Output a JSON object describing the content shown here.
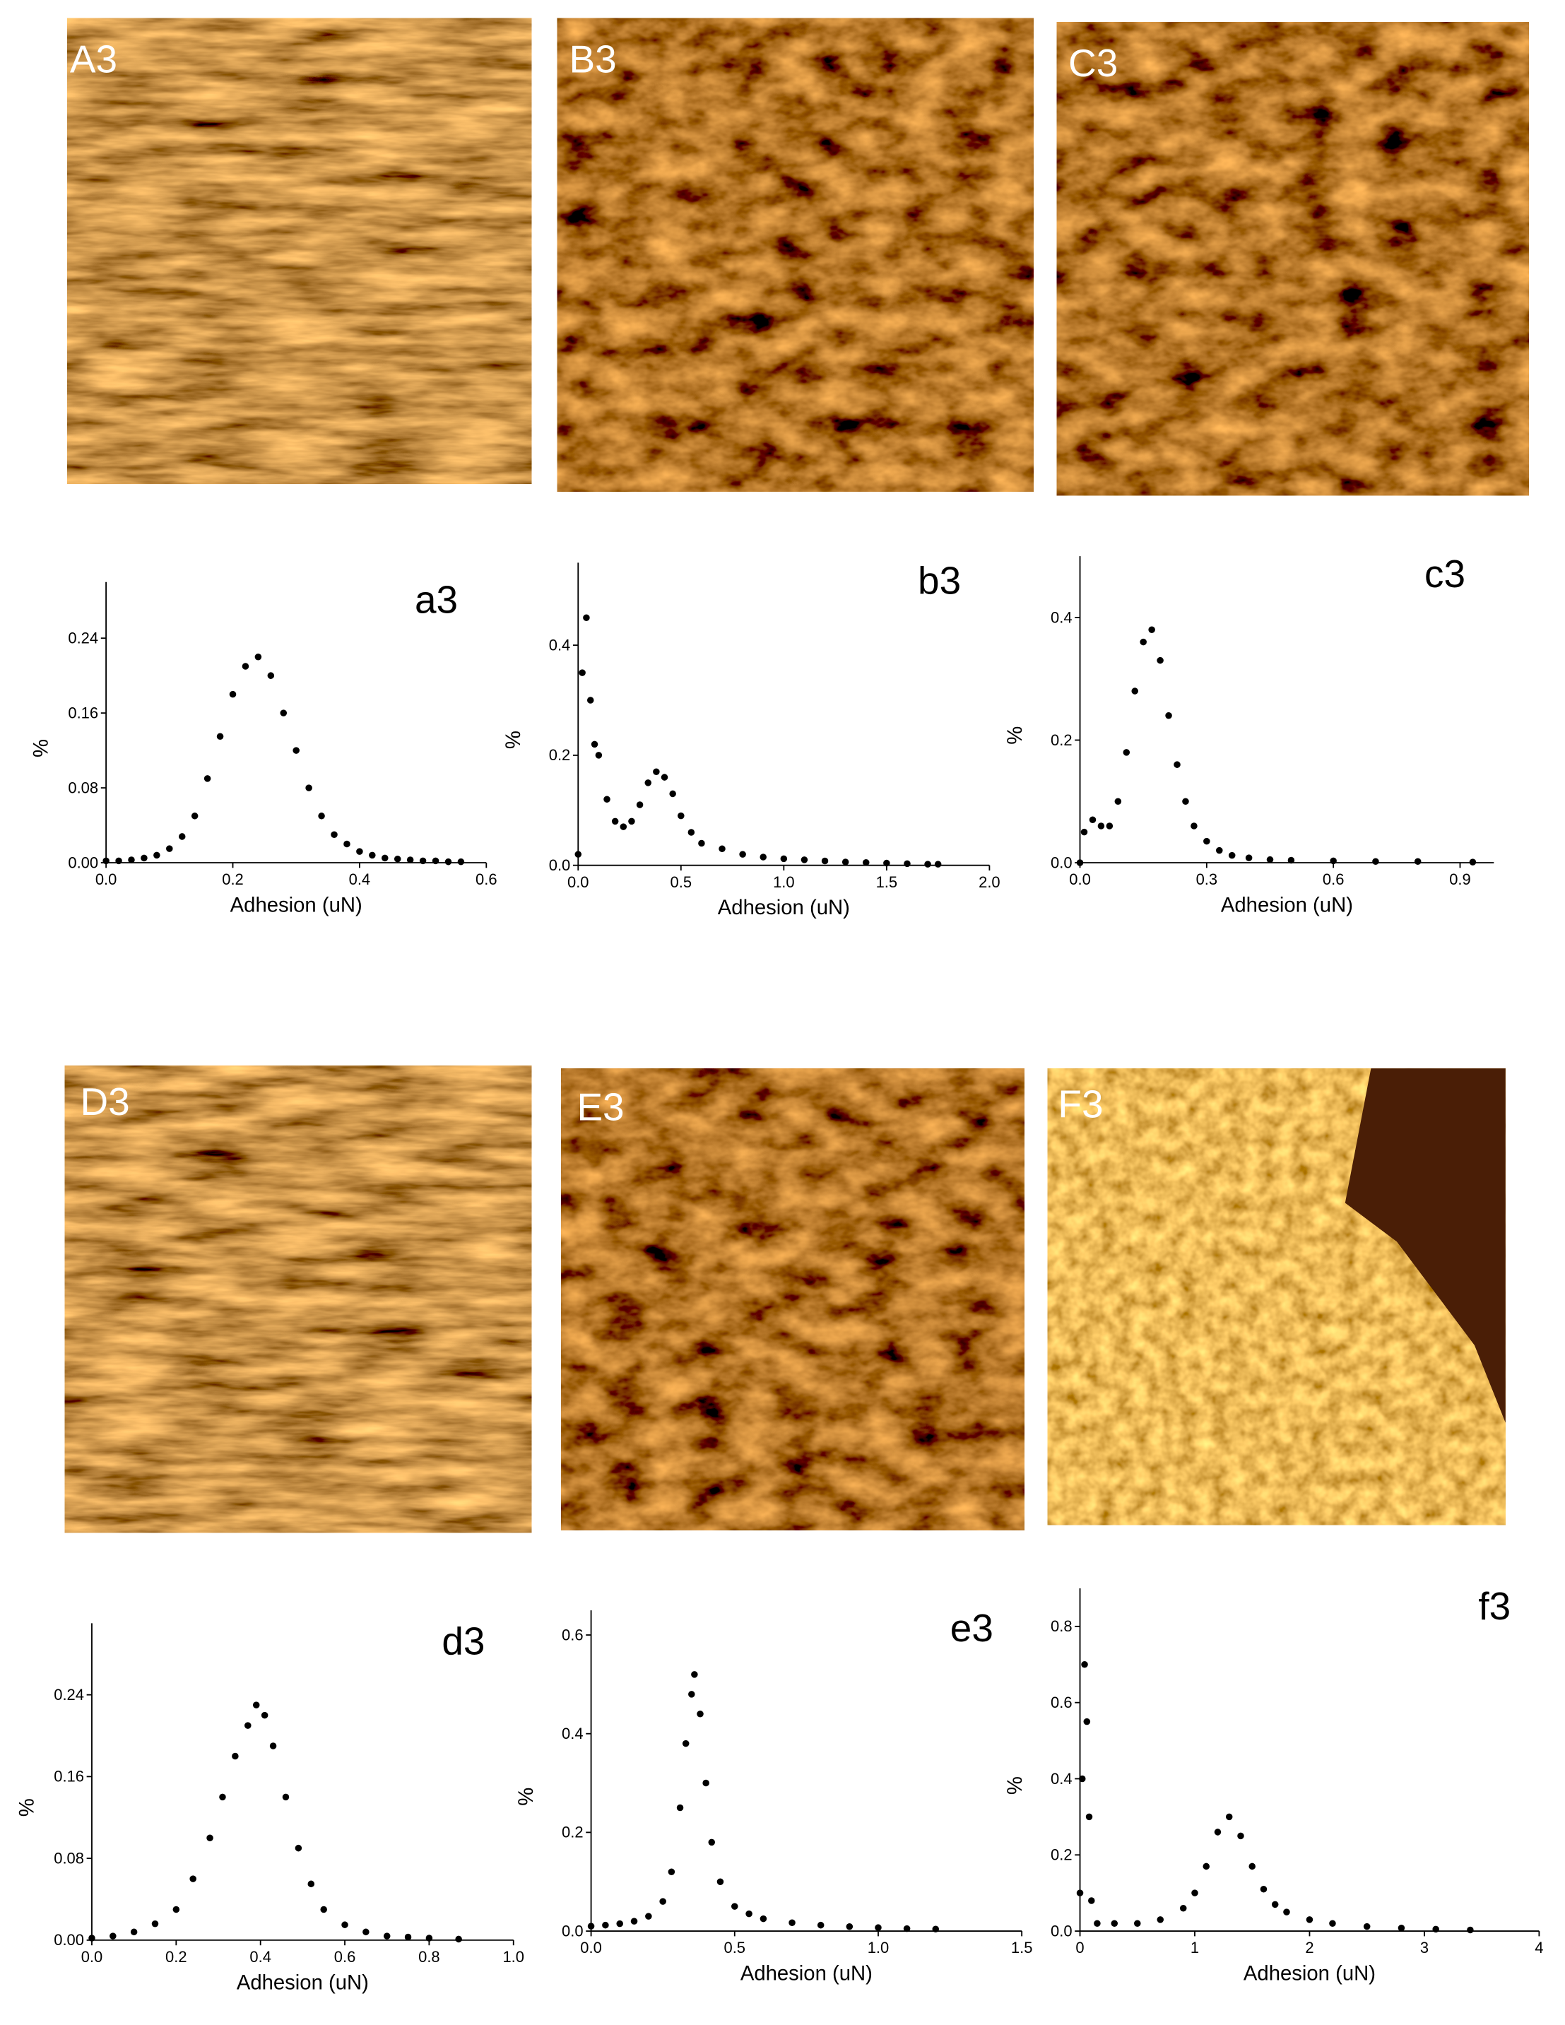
{
  "images": [
    {
      "label": "A3"
    },
    {
      "label": "B3"
    },
    {
      "label": "C3"
    },
    {
      "label": "D3"
    },
    {
      "label": "E3"
    },
    {
      "label": "F3"
    }
  ],
  "chart_data": [
    {
      "type": "scatter",
      "title": "a3",
      "xlabel": "Adhesion (uN)",
      "ylabel": "%",
      "color": "#000000",
      "xlim": [
        0,
        0.6
      ],
      "ylim": [
        0,
        0.3
      ],
      "xticks": [
        {
          "value": 0,
          "label": "0.0"
        },
        {
          "value": 0.2,
          "label": "0.2"
        },
        {
          "value": 0.4,
          "label": "0.4"
        },
        {
          "value": 0.6,
          "label": "0.6"
        }
      ],
      "yticks": [
        {
          "value": 0,
          "label": "0.00"
        },
        {
          "value": 0.08,
          "label": "0.08"
        },
        {
          "value": 0.16,
          "label": "0.16"
        },
        {
          "value": 0.24,
          "label": "0.24"
        }
      ],
      "x": [
        0,
        0.02,
        0.04,
        0.06,
        0.08,
        0.1,
        0.12,
        0.14,
        0.16,
        0.18,
        0.2,
        0.22,
        0.24,
        0.26,
        0.28,
        0.3,
        0.32,
        0.34,
        0.36,
        0.38,
        0.4,
        0.42,
        0.44,
        0.46,
        0.48,
        0.5,
        0.52,
        0.54,
        0.56
      ],
      "values": [
        0.002,
        0.002,
        0.003,
        0.005,
        0.008,
        0.015,
        0.028,
        0.05,
        0.09,
        0.135,
        0.18,
        0.21,
        0.22,
        0.2,
        0.16,
        0.12,
        0.08,
        0.05,
        0.03,
        0.02,
        0.012,
        0.008,
        0.005,
        0.004,
        0.003,
        0.002,
        0.002,
        0.001,
        0.001
      ]
    },
    {
      "type": "scatter",
      "title": "b3",
      "xlabel": "Adhesion (uN)",
      "ylabel": "%",
      "color": "#000000",
      "xlim": [
        0,
        2.0
      ],
      "ylim": [
        0,
        0.55
      ],
      "xticks": [
        {
          "value": 0,
          "label": "0.0"
        },
        {
          "value": 0.5,
          "label": "0.5"
        },
        {
          "value": 1,
          "label": "1.0"
        },
        {
          "value": 1.5,
          "label": "1.5"
        },
        {
          "value": 2,
          "label": "2.0"
        }
      ],
      "yticks": [
        {
          "value": 0,
          "label": "0.0"
        },
        {
          "value": 0.2,
          "label": "0.2"
        },
        {
          "value": 0.4,
          "label": "0.4"
        }
      ],
      "x": [
        0,
        0.02,
        0.04,
        0.06,
        0.08,
        0.1,
        0.14,
        0.18,
        0.22,
        0.26,
        0.3,
        0.34,
        0.38,
        0.42,
        0.46,
        0.5,
        0.55,
        0.6,
        0.7,
        0.8,
        0.9,
        1.0,
        1.1,
        1.2,
        1.3,
        1.4,
        1.5,
        1.6,
        1.7,
        1.75
      ],
      "values": [
        0.02,
        0.35,
        0.45,
        0.3,
        0.22,
        0.2,
        0.12,
        0.08,
        0.07,
        0.08,
        0.11,
        0.15,
        0.17,
        0.16,
        0.13,
        0.09,
        0.06,
        0.04,
        0.03,
        0.02,
        0.015,
        0.012,
        0.01,
        0.008,
        0.006,
        0.005,
        0.004,
        0.003,
        0.002,
        0.002
      ]
    },
    {
      "type": "scatter",
      "title": "c3",
      "xlabel": "Adhesion (uN)",
      "ylabel": "%",
      "color": "#000000",
      "xlim": [
        0,
        0.98
      ],
      "ylim": [
        0,
        0.5
      ],
      "xticks": [
        {
          "value": 0,
          "label": "0.0"
        },
        {
          "value": 0.3,
          "label": "0.3"
        },
        {
          "value": 0.6,
          "label": "0.6"
        },
        {
          "value": 0.9,
          "label": "0.9"
        }
      ],
      "yticks": [
        {
          "value": 0,
          "label": "0.0"
        },
        {
          "value": 0.2,
          "label": "0.2"
        },
        {
          "value": 0.4,
          "label": "0.4"
        }
      ],
      "x": [
        0,
        0.01,
        0.03,
        0.05,
        0.07,
        0.09,
        0.11,
        0.13,
        0.15,
        0.17,
        0.19,
        0.21,
        0.23,
        0.25,
        0.27,
        0.3,
        0.33,
        0.36,
        0.4,
        0.45,
        0.5,
        0.6,
        0.7,
        0.8,
        0.93
      ],
      "values": [
        0,
        0.05,
        0.07,
        0.06,
        0.06,
        0.1,
        0.18,
        0.28,
        0.36,
        0.38,
        0.33,
        0.24,
        0.16,
        0.1,
        0.06,
        0.035,
        0.02,
        0.012,
        0.008,
        0.005,
        0.004,
        0.003,
        0.002,
        0.002,
        0.001
      ]
    },
    {
      "type": "scatter",
      "title": "d3",
      "xlabel": "Adhesion (uN)",
      "ylabel": "%",
      "color": "#000000",
      "xlim": [
        0,
        1.0
      ],
      "ylim": [
        0,
        0.31
      ],
      "xticks": [
        {
          "value": 0,
          "label": "0.0"
        },
        {
          "value": 0.2,
          "label": "0.2"
        },
        {
          "value": 0.4,
          "label": "0.4"
        },
        {
          "value": 0.6,
          "label": "0.6"
        },
        {
          "value": 0.8,
          "label": "0.8"
        },
        {
          "value": 1,
          "label": "1.0"
        }
      ],
      "yticks": [
        {
          "value": 0,
          "label": "0.00"
        },
        {
          "value": 0.08,
          "label": "0.08"
        },
        {
          "value": 0.16,
          "label": "0.16"
        },
        {
          "value": 0.24,
          "label": "0.24"
        }
      ],
      "x": [
        0,
        0.05,
        0.1,
        0.15,
        0.2,
        0.24,
        0.28,
        0.31,
        0.34,
        0.37,
        0.39,
        0.41,
        0.43,
        0.46,
        0.49,
        0.52,
        0.55,
        0.6,
        0.65,
        0.7,
        0.75,
        0.8,
        0.87
      ],
      "values": [
        0.002,
        0.004,
        0.008,
        0.016,
        0.03,
        0.06,
        0.1,
        0.14,
        0.18,
        0.21,
        0.23,
        0.22,
        0.19,
        0.14,
        0.09,
        0.055,
        0.03,
        0.015,
        0.008,
        0.004,
        0.003,
        0.002,
        0.001
      ]
    },
    {
      "type": "scatter",
      "title": "e3",
      "xlabel": "Adhesion (uN)",
      "ylabel": "%",
      "color": "#000000",
      "xlim": [
        0,
        1.5
      ],
      "ylim": [
        0,
        0.65
      ],
      "xticks": [
        {
          "value": 0,
          "label": "0.0"
        },
        {
          "value": 0.5,
          "label": "0.5"
        },
        {
          "value": 1,
          "label": "1.0"
        },
        {
          "value": 1.5,
          "label": "1.5"
        }
      ],
      "yticks": [
        {
          "value": 0,
          "label": "0.0"
        },
        {
          "value": 0.2,
          "label": "0.2"
        },
        {
          "value": 0.4,
          "label": "0.4"
        },
        {
          "value": 0.6,
          "label": "0.6"
        }
      ],
      "x": [
        0,
        0.05,
        0.1,
        0.15,
        0.2,
        0.25,
        0.28,
        0.31,
        0.33,
        0.35,
        0.36,
        0.38,
        0.4,
        0.42,
        0.45,
        0.5,
        0.55,
        0.6,
        0.7,
        0.8,
        0.9,
        1.0,
        1.1,
        1.2
      ],
      "values": [
        0.01,
        0.012,
        0.015,
        0.02,
        0.03,
        0.06,
        0.12,
        0.25,
        0.38,
        0.48,
        0.52,
        0.44,
        0.3,
        0.18,
        0.1,
        0.05,
        0.035,
        0.025,
        0.017,
        0.012,
        0.009,
        0.007,
        0.005,
        0.004
      ]
    },
    {
      "type": "scatter",
      "title": "f3",
      "xlabel": "Adhesion (uN)",
      "ylabel": "%",
      "color": "#000000",
      "xlim": [
        0,
        4
      ],
      "ylim": [
        0,
        0.9
      ],
      "xticks": [
        0,
        1,
        2,
        3,
        4
      ],
      "yticks": [
        {
          "value": 0,
          "label": "0.0"
        },
        {
          "value": 0.2,
          "label": "0.2"
        },
        {
          "value": 0.4,
          "label": "0.4"
        },
        {
          "value": 0.6,
          "label": "0.6"
        },
        {
          "value": 0.8,
          "label": "0.8"
        }
      ],
      "x": [
        0,
        0.02,
        0.04,
        0.06,
        0.08,
        0.1,
        0.15,
        0.3,
        0.5,
        0.7,
        0.9,
        1.0,
        1.1,
        1.2,
        1.3,
        1.4,
        1.5,
        1.6,
        1.7,
        1.8,
        2.0,
        2.2,
        2.5,
        2.8,
        3.1,
        3.4
      ],
      "values": [
        0.1,
        0.4,
        0.7,
        0.55,
        0.3,
        0.08,
        0.02,
        0.02,
        0.02,
        0.03,
        0.06,
        0.1,
        0.17,
        0.26,
        0.3,
        0.25,
        0.17,
        0.11,
        0.07,
        0.05,
        0.03,
        0.02,
        0.012,
        0.008,
        0.005,
        0.003
      ]
    }
  ]
}
